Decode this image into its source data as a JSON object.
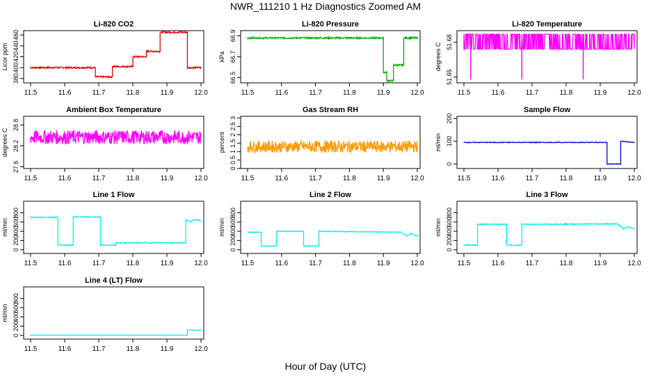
{
  "title": "NWR_111210  1 Hz Diagnostics Zoomed AM",
  "xlabel": "Hour of Day (UTC)",
  "chart_data": [
    {
      "type": "line",
      "title": "Li-820 CO2",
      "ylabel": "Licor ppm",
      "color": "#e00000",
      "xlim": [
        11.5,
        12.0
      ],
      "ylim": [
        372,
        468
      ],
      "yticks": [
        380,
        400,
        420,
        440,
        460
      ],
      "x": [
        11.5,
        11.69,
        11.69,
        11.74,
        11.74,
        11.8,
        11.8,
        11.84,
        11.84,
        11.88,
        11.88,
        11.96,
        11.96,
        12.0
      ],
      "y": [
        400,
        400,
        383,
        383,
        402,
        402,
        420,
        420,
        430,
        430,
        465,
        465,
        400,
        400
      ],
      "noise": 1.5
    },
    {
      "type": "line",
      "title": "Li-820 Pressure",
      "ylabel": "kPa",
      "color": "#00b000",
      "xlim": [
        11.5,
        12.0
      ],
      "ylim": [
        66.45,
        66.95
      ],
      "yticks": [
        66.5,
        66.7,
        66.9
      ],
      "x": [
        11.5,
        11.9,
        11.9,
        11.91,
        11.91,
        11.93,
        11.93,
        11.95,
        11.95,
        11.96,
        11.96,
        12.0
      ],
      "y": [
        66.88,
        66.88,
        66.55,
        66.55,
        66.47,
        66.47,
        66.62,
        66.62,
        66.62,
        66.62,
        66.88,
        66.88
      ],
      "noise": 0.008
    },
    {
      "type": "line",
      "title": "Li-820 Temperature",
      "ylabel": "degrees C",
      "color": "#ff00ff",
      "xlim": [
        11.5,
        12.0
      ],
      "ylim": [
        51.645,
        51.69
      ],
      "yticks": [
        51.65,
        51.68
      ],
      "x": [
        11.5,
        12.0
      ],
      "y": [
        51.674,
        51.674
      ],
      "noise": 0.0,
      "band": [
        51.674,
        51.687
      ],
      "spikes": [
        [
          11.52,
          51.648
        ],
        [
          11.67,
          51.648
        ],
        [
          11.85,
          51.648
        ]
      ]
    },
    {
      "type": "line",
      "title": "Ambient Box Temperature",
      "ylabel": "degrees C",
      "color": "#ff00ff",
      "xlim": [
        11.5,
        12.0
      ],
      "ylim": [
        27.55,
        29.05
      ],
      "yticks": [
        27.6,
        28.2,
        28.8
      ],
      "x": [
        11.5,
        12.0
      ],
      "y": [
        28.45,
        28.45
      ],
      "noise": 0.2
    },
    {
      "type": "line",
      "title": "Gas Stream RH",
      "ylabel": "percent",
      "color": "#ff9900",
      "xlim": [
        11.5,
        12.0
      ],
      "ylim": [
        0,
        3.1
      ],
      "yticks": [
        0,
        0.5,
        1.0,
        1.5,
        2.0,
        2.5,
        3.0
      ],
      "x": [
        11.5,
        12.0
      ],
      "y": [
        1.3,
        1.3
      ],
      "noise": 0.35
    },
    {
      "type": "line",
      "title": "Sample Flow",
      "ylabel": "ml/min",
      "color": "#0000e0",
      "xlim": [
        11.5,
        12.0
      ],
      "ylim": [
        -20,
        210
      ],
      "yticks": [
        0,
        100,
        200
      ],
      "x": [
        11.5,
        11.92,
        11.92,
        11.96,
        11.96,
        12.0
      ],
      "y": [
        95,
        95,
        0,
        0,
        100,
        95
      ],
      "noise": 1.5
    },
    {
      "type": "line",
      "title": "Line 1 Flow",
      "ylabel": "ml/min",
      "color": "#00f0f0",
      "xlim": [
        11.5,
        12.0
      ],
      "ylim": [
        -80,
        1050
      ],
      "yticks": [
        0,
        200,
        400,
        600,
        800
      ],
      "x": [
        11.5,
        11.58,
        11.58,
        11.625,
        11.625,
        11.705,
        11.705,
        11.75,
        11.75,
        11.955,
        11.955,
        11.97,
        11.98,
        12.0
      ],
      "y": [
        700,
        700,
        100,
        100,
        710,
        710,
        100,
        100,
        150,
        150,
        650,
        600,
        650,
        630
      ],
      "noise": 10
    },
    {
      "type": "line",
      "title": "Line 2 Flow",
      "ylabel": "ml/min",
      "color": "#00f0f0",
      "xlim": [
        11.5,
        12.0
      ],
      "ylim": [
        -80,
        1050
      ],
      "yticks": [
        0,
        200,
        400,
        600,
        800
      ],
      "x": [
        11.5,
        11.54,
        11.54,
        11.585,
        11.585,
        11.665,
        11.665,
        11.71,
        11.71,
        11.95,
        11.97,
        11.98,
        12.0
      ],
      "y": [
        380,
        380,
        80,
        80,
        400,
        400,
        80,
        80,
        400,
        380,
        300,
        350,
        300
      ],
      "noise": 8
    },
    {
      "type": "line",
      "title": "Line 3 Flow",
      "ylabel": "ml/min",
      "color": "#00f0f0",
      "xlim": [
        11.5,
        12.0
      ],
      "ylim": [
        -80,
        1050
      ],
      "yticks": [
        0,
        200,
        400,
        600,
        800
      ],
      "x": [
        11.5,
        11.54,
        11.54,
        11.625,
        11.625,
        11.67,
        11.67,
        11.95,
        11.97,
        11.98,
        12.0
      ],
      "y": [
        100,
        100,
        550,
        550,
        100,
        100,
        550,
        560,
        450,
        500,
        450
      ],
      "noise": 10
    },
    {
      "type": "line",
      "title": "Line 4 (LT) Flow",
      "ylabel": "ml/min",
      "color": "#00f0f0",
      "xlim": [
        11.5,
        12.0
      ],
      "ylim": [
        -80,
        1050
      ],
      "yticks": [
        0,
        200,
        400,
        600,
        800
      ],
      "x": [
        11.5,
        11.96,
        11.96,
        12.0
      ],
      "y": [
        5,
        5,
        120,
        110
      ],
      "noise": 2
    }
  ],
  "xticks": [
    "11.5",
    "11.6",
    "11.7",
    "11.8",
    "11.9",
    "12.0"
  ]
}
